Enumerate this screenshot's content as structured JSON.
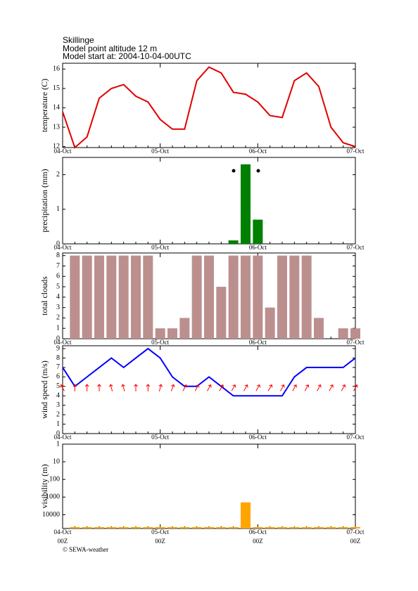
{
  "header": {
    "location": "Skillinge",
    "altitude": "Model point altitude  12 m",
    "model_start": "Model start at: 2004-10-04-00UTC"
  },
  "footer": "© SEWA-weather",
  "chart_data": [
    {
      "type": "line",
      "ylabel": "temperature (C)",
      "color": "#e00000",
      "categories": [
        "04-Oct",
        null,
        null,
        null,
        null,
        null,
        null,
        null,
        "05-Oct",
        null,
        null,
        null,
        null,
        null,
        null,
        null,
        "06-Oct",
        null,
        null,
        null,
        null,
        null,
        null,
        null,
        "07-Oct"
      ],
      "values": [
        13.8,
        11.95,
        12.5,
        14.5,
        15.0,
        15.2,
        14.6,
        14.3,
        13.4,
        12.9,
        12.9,
        15.4,
        16.1,
        15.8,
        14.8,
        14.7,
        14.3,
        13.6,
        13.5,
        15.4,
        15.8,
        15.1,
        13.0,
        12.2,
        12.0
      ],
      "ylim": [
        11.95,
        16.3
      ],
      "yticks": [
        12,
        13,
        14,
        15,
        16
      ]
    },
    {
      "type": "bar",
      "ylabel": "precipitation (mm)",
      "color": "#008000",
      "categories": [
        "04-Oct",
        null,
        null,
        null,
        null,
        null,
        null,
        null,
        "05-Oct",
        null,
        null,
        null,
        null,
        null,
        null,
        null,
        "06-Oct",
        null,
        null,
        null,
        null,
        null,
        null,
        null,
        "07-Oct"
      ],
      "values": [
        null,
        0,
        0,
        0,
        0,
        0,
        0,
        0,
        0,
        0,
        0,
        0,
        0,
        0,
        0.1,
        2.3,
        0.7,
        0,
        0,
        0,
        0,
        0,
        0,
        0,
        0
      ],
      "ylim": [
        0,
        2.5
      ],
      "yticks": [
        0,
        1,
        2
      ]
    },
    {
      "type": "bar",
      "ylabel": "total clouds",
      "color": "#bc8f8f",
      "categories": [
        "04-Oct",
        null,
        null,
        null,
        null,
        null,
        null,
        null,
        "05-Oct",
        null,
        null,
        null,
        null,
        null,
        null,
        null,
        "06-Oct",
        null,
        null,
        null,
        null,
        null,
        null,
        null,
        "07-Oct"
      ],
      "values": [
        null,
        8,
        8,
        8,
        8,
        8,
        8,
        8,
        1,
        1,
        2,
        8,
        8,
        5,
        8,
        8,
        8,
        3,
        8,
        8,
        8,
        2,
        0,
        1,
        1
      ],
      "ylim": [
        0,
        8.25
      ],
      "yticks": [
        0,
        1,
        2,
        3,
        4,
        5,
        6,
        7,
        8
      ]
    },
    {
      "type": "line",
      "ylabel": "wind speed (m/s)",
      "color": "#0000ff",
      "categories": [
        "04-Oct",
        null,
        null,
        null,
        null,
        null,
        null,
        null,
        "05-Oct",
        null,
        null,
        null,
        null,
        null,
        null,
        null,
        "06-Oct",
        null,
        null,
        null,
        null,
        null,
        null,
        null,
        "07-Oct"
      ],
      "values": [
        7,
        5,
        6,
        7,
        8,
        7,
        8,
        9,
        8,
        6,
        5,
        5,
        6,
        5,
        4,
        4,
        4,
        4,
        4,
        6,
        7,
        7,
        7,
        7,
        8
      ],
      "wind_direction": [
        330,
        0,
        0,
        0,
        345,
        345,
        0,
        0,
        15,
        20,
        30,
        30,
        30,
        30,
        30,
        30,
        30,
        30,
        30,
        30,
        30,
        30,
        30,
        30,
        30
      ],
      "direction_color": "#ff0000",
      "ylim": [
        0,
        9.3
      ],
      "yticks": [
        0,
        1,
        2,
        3,
        4,
        5,
        6,
        7,
        8,
        9
      ]
    },
    {
      "type": "bar",
      "ylabel": "visibility (m)",
      "color": "#ffa500",
      "log_scale": true,
      "reversed": true,
      "categories": [
        "04-Oct",
        null,
        null,
        null,
        null,
        null,
        null,
        null,
        "05-Oct",
        null,
        null,
        null,
        null,
        null,
        null,
        null,
        "06-Oct",
        null,
        null,
        null,
        null,
        null,
        null,
        null,
        "07-Oct"
      ],
      "x_sublabels": [
        "00Z",
        "00Z",
        "00Z",
        "00Z"
      ],
      "values": [
        null,
        50000,
        50000,
        50000,
        50000,
        50000,
        50000,
        50000,
        50000,
        50000,
        50000,
        50000,
        50000,
        50000,
        50000,
        2000,
        50000,
        50000,
        50000,
        50000,
        50000,
        50000,
        50000,
        50000,
        50000
      ],
      "ylim": [
        1,
        60000
      ],
      "yticks": [
        1,
        10,
        100,
        1000,
        10000
      ]
    }
  ]
}
